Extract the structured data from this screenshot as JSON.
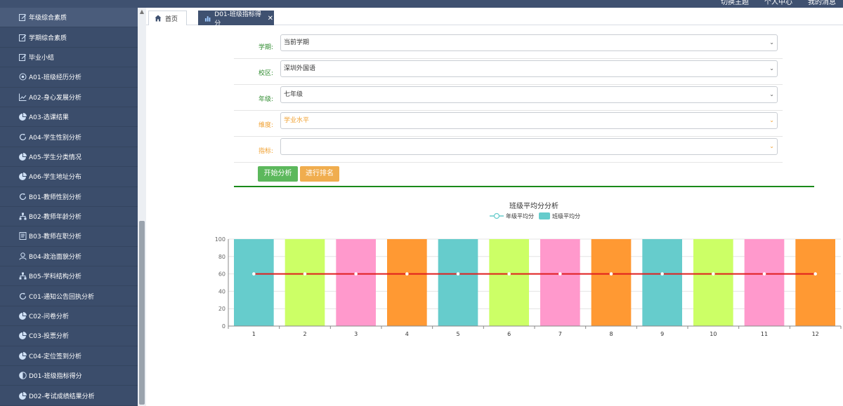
{
  "topnav": [
    "切换主题",
    "个人中心",
    "我的消息"
  ],
  "sidebar": {
    "items": [
      {
        "label": "年级综合素质",
        "icon": "edit-icon"
      },
      {
        "label": "学期综合素质",
        "icon": "edit-icon"
      },
      {
        "label": "毕业小结",
        "icon": "edit-icon"
      },
      {
        "label": "A01-班级经历分析",
        "icon": "target-icon"
      },
      {
        "label": "A02-身心发展分析",
        "icon": "line-chart-icon"
      },
      {
        "label": "A03-选课结果",
        "icon": "pie-chart-icon"
      },
      {
        "label": "A04-学生性别分析",
        "icon": "refresh-icon"
      },
      {
        "label": "A05-学生分类情况",
        "icon": "pie-chart-icon"
      },
      {
        "label": "A06-学生地址分布",
        "icon": "pie-chart-icon"
      },
      {
        "label": "B01-教师性别分析",
        "icon": "refresh-icon"
      },
      {
        "label": "B02-教师年龄分析",
        "icon": "hierarchy-icon"
      },
      {
        "label": "B03-教师在职分析",
        "icon": "document-icon"
      },
      {
        "label": "B04-政治面貌分析",
        "icon": "user-icon"
      },
      {
        "label": "B05-学科结构分析",
        "icon": "hierarchy-icon"
      },
      {
        "label": "C01-通知公告回执分析",
        "icon": "refresh-icon"
      },
      {
        "label": "C02-问卷分析",
        "icon": "pie-chart-icon"
      },
      {
        "label": "C03-投票分析",
        "icon": "pie-chart-icon"
      },
      {
        "label": "C04-定位签到分析",
        "icon": "pie-chart-icon"
      },
      {
        "label": "D01-班级指标得分",
        "icon": "half-circle-icon"
      },
      {
        "label": "D02-考试成绩结果分析",
        "icon": "pie-chart-icon"
      }
    ]
  },
  "tabs": {
    "home": "首页",
    "active": "D01-班级指标得分",
    "close": "✕"
  },
  "form": {
    "term": {
      "label": "学期:",
      "value": "当前学期"
    },
    "campus": {
      "label": "校区:",
      "value": "深圳外国语"
    },
    "grade": {
      "label": "年级:",
      "value": "七年级"
    },
    "dimension": {
      "label": "维度:",
      "value": "学业水平"
    },
    "indicator": {
      "label": "指标:",
      "value": ""
    }
  },
  "buttons": {
    "analyze": "开始分析",
    "rank": "进行排名"
  },
  "colors": {
    "sidebar": "#3b4d6b",
    "active_tab": "#3f5170",
    "primary_green": "#5cb85c",
    "primary_orange": "#f0ad4e",
    "label_green": "#2e8b2e",
    "label_orange": "#f0a030"
  },
  "chart_data": {
    "type": "bar",
    "title": "班级平均分分析",
    "categories": [
      "1",
      "2",
      "3",
      "4",
      "5",
      "6",
      "7",
      "8",
      "9",
      "10",
      "11",
      "12"
    ],
    "series": [
      {
        "name": "年级平均分",
        "type": "line",
        "values": [
          60,
          60,
          60,
          60,
          60,
          60,
          60,
          60,
          60,
          60,
          60,
          60
        ],
        "color": "#e01e1e"
      },
      {
        "name": "班级平均分",
        "type": "bar",
        "values": [
          100,
          100,
          100,
          100,
          100,
          100,
          100,
          100,
          100,
          100,
          100,
          100
        ],
        "color": "#66cccc"
      }
    ],
    "bar_colors": [
      "#66cccc",
      "#ccff66",
      "#ff99cc",
      "#ff9933",
      "#66cccc",
      "#ccff66",
      "#ff99cc",
      "#ff9933",
      "#66cccc",
      "#ccff66",
      "#ff99cc",
      "#ff9933"
    ],
    "y_ticks": [
      0,
      20,
      40,
      60,
      80,
      100
    ],
    "ylim": [
      0,
      100
    ],
    "grid": true,
    "legend": "top-center"
  }
}
